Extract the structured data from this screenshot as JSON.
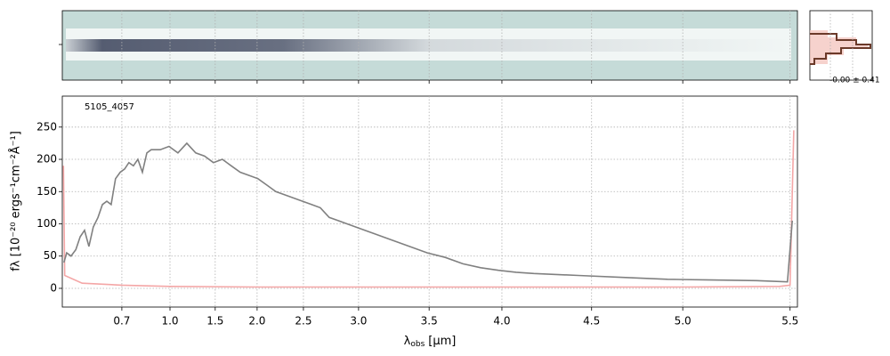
{
  "chart_data": {
    "type": "line",
    "label": "5105_4057",
    "stat_label": "-0.00 ± 0.41",
    "ylabel": "fλ [10⁻²⁰ ergs⁻¹cm⁻²Å⁻¹]",
    "xlabel": {
      "symbol": "λ",
      "sub": "obs",
      "unit": "[μm]"
    },
    "xlim": [
      0.55,
      5.53
    ],
    "ylim": [
      -29,
      298
    ],
    "xticks": [
      0.7,
      {
        "value": 1,
        "label": "1.0"
      },
      1.5,
      {
        "value": 2,
        "label": "2.0"
      },
      2.5,
      {
        "value": 3,
        "label": "3.0"
      },
      3.5,
      {
        "value": 4,
        "label": "4.0"
      },
      4.5,
      {
        "value": 5,
        "label": "5.0"
      },
      5.5
    ],
    "yticks": [
      0,
      50,
      100,
      150,
      200,
      250
    ],
    "grid": true,
    "series": [
      {
        "color": "#808080",
        "x": [
          0.554,
          0.561,
          0.572,
          0.584,
          0.595,
          0.606,
          0.617,
          0.628,
          0.64,
          0.651,
          0.662,
          0.673,
          0.684,
          0.696,
          0.717,
          0.744,
          0.772,
          0.8,
          0.828,
          0.856,
          0.883,
          0.939,
          0.994,
          1.088,
          1.186,
          1.284,
          1.382,
          1.48,
          1.585,
          1.691,
          1.798,
          1.904,
          2.01,
          2.106,
          2.202,
          2.298,
          2.394,
          2.49,
          2.573,
          2.653,
          2.734,
          2.815,
          2.895,
          2.976,
          3.108,
          3.234,
          3.361,
          3.487,
          3.61,
          3.732,
          3.854,
          3.976,
          4.079,
          4.178,
          4.426,
          4.672,
          4.917,
          5.136,
          5.343,
          5.488,
          5.509
        ],
        "values": [
          40,
          55,
          50,
          60,
          80,
          90,
          65,
          95,
          110,
          130,
          135,
          130,
          170,
          180,
          185,
          195,
          190,
          200,
          180,
          210,
          215,
          215,
          220,
          210,
          225,
          210,
          205,
          195,
          200,
          190,
          180,
          175,
          170,
          160,
          150,
          145,
          140,
          135,
          130,
          125,
          110,
          105,
          100,
          95,
          85,
          75,
          65,
          55,
          48,
          38,
          32,
          28,
          25,
          23,
          20,
          17,
          14,
          13,
          12,
          10,
          105
        ]
      },
      {
        "color": "#f4a6a6",
        "x": [
          0.553,
          0.556,
          0.6,
          0.7,
          1.0,
          2.0,
          3.0,
          4.0,
          5.0,
          5.45,
          5.5,
          5.515
        ],
        "values": [
          190,
          20,
          8,
          5,
          3,
          2,
          2,
          2,
          2,
          3,
          5,
          245
        ]
      }
    ]
  }
}
